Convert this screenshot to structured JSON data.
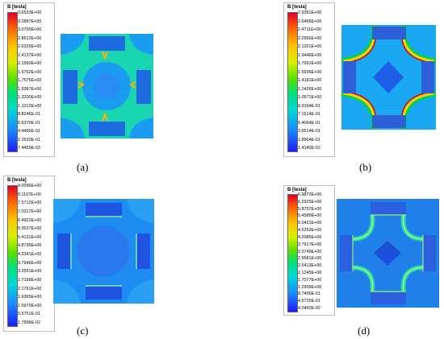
{
  "panels": [
    {
      "caption": "(a)",
      "legend_title": "B [tesla]",
      "values": [
        "3.6533E+00",
        "3.2887E+00",
        "3.0700E+00",
        "2.8512E+00",
        "2.6325E+00",
        "2.4137E+00",
        "2.1950E+00",
        "1.9762E+00",
        "1.7575E+00",
        "1.5387E+00",
        "1.3200E+00",
        "1.1012E+00",
        "8.8246E-01",
        "6.6370E-01",
        "4.4495E-01",
        "2.2620E-01",
        "7.4459E-03"
      ]
    },
    {
      "caption": "(b)",
      "legend_title": "B [tesla]",
      "values": [
        "2.9391E+00",
        "2.6466E+00",
        "2.4711E+00",
        "2.2956E+00",
        "2.1201E+00",
        "1.9446E+00",
        "1.7691E+00",
        "1.5936E+00",
        "1.4181E+00",
        "1.2426E+00",
        "1.0671E+00",
        "8.9164E-01",
        "7.1614E-01",
        "5.4064E-01",
        "3.6514E-01",
        "1.8964E-01",
        "1.4140E-02"
      ]
    },
    {
      "caption": "(c)",
      "legend_title": "B [tesla]",
      "values": [
        "9.0096E+00",
        "8.1107E+00",
        "7.5712E+00",
        "7.0317E+00",
        "6.4922E+00",
        "5.9527E+00",
        "5.4131E+00",
        "4.8736E+00",
        "4.3341E+00",
        "3.7946E+00",
        "3.2551E+00",
        "2.7156E+00",
        "2.1761E+00",
        "1.6365E+00",
        "1.0970E+00",
        "5.5751E-01",
        "1.7996E-02"
      ]
    },
    {
      "caption": "(d)",
      "legend_title": "B [tesla]",
      "values": [
        "6.9872E+00",
        "6.2925E+00",
        "5.8757E+00",
        "5.4589E+00",
        "5.0421E+00",
        "4.6253E+00",
        "4.2085E+00",
        "3.7917E+00",
        "3.3749E+00",
        "2.9581E+00",
        "2.5413E+00",
        "2.1245E+00",
        "1.7077E+00",
        "1.2909E+00",
        "8.7406E-01",
        "4.5725E-01",
        "4.0450E-02"
      ]
    }
  ]
}
